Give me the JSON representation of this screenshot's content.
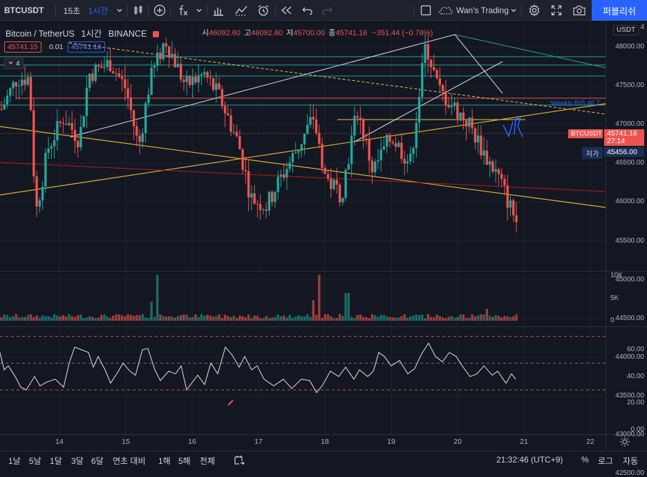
{
  "toolbar": {
    "symbol": "BTCUSDT",
    "compare_label": "15초",
    "interval": "1시간",
    "layout_name": "Wan's Trading",
    "publish_label": "퍼블리쉬"
  },
  "legend": {
    "title": "Bitcoin / TetherUS",
    "interval": "1시간",
    "exchange": "BINANCE",
    "open_label": "시",
    "open": "46092.60",
    "high_label": "고",
    "high": "46092.60",
    "low_label": "저",
    "low": "45700.00",
    "close_label": "종",
    "close": "45741.16",
    "change": "−351.44 (−0.76%)",
    "bid": "45741.15",
    "spread": "0.01",
    "ask": "45741.16",
    "indicator_count": "4"
  },
  "price_axis": {
    "currency": "USDT",
    "ticks": [
      "48000.00",
      "47500.00",
      "47000.00",
      "46500.00",
      "46000.00",
      "45500.00",
      "45000.00",
      "44500.00",
      "44000.00",
      "43500.00",
      "43000.00",
      "42500.00"
    ],
    "top_tick_partial": "4",
    "last_label": "BTCUSDT",
    "last_price": "45741.16",
    "countdown": "27:14",
    "low_label": "저가",
    "low_price": "45456.00",
    "weekly_rs_label": "Weekly R/S 46.7"
  },
  "volume_axis": {
    "ticks": [
      "10K",
      "5K",
      "0"
    ]
  },
  "rsi_axis": {
    "ticks": [
      "60.00",
      "40.00",
      "20.00",
      "0.00"
    ]
  },
  "time_axis": {
    "ticks": [
      "14",
      "15",
      "16",
      "17",
      "18",
      "19",
      "20",
      "21",
      "22"
    ]
  },
  "bottom_bar": {
    "ranges": [
      "1날",
      "5날",
      "1달",
      "3달",
      "6달",
      "연초 대비",
      "1해",
      "5해",
      "전체"
    ],
    "clock": "21:32:46 (UTC+9)",
    "percent": "%",
    "log": "로그",
    "auto": "자동"
  },
  "colors": {
    "background": "#131722",
    "up": "#26a69a",
    "down": "#ef5350",
    "accent": "#2962ff"
  },
  "chart_data": {
    "type": "candlestick",
    "title": "Bitcoin / TetherUS · 1시간 · BINANCE",
    "x_ticks": [
      "14",
      "15",
      "16",
      "17",
      "18",
      "19",
      "20",
      "21",
      "22"
    ],
    "price_range": [
      42200,
      48500
    ],
    "volume_range": [
      0,
      11000
    ],
    "rsi_range": [
      0,
      75
    ],
    "last_price": 45741.16,
    "session_low": 45456.0,
    "rsi_levels": [
      70,
      50,
      30
    ],
    "trendlines": [
      {
        "name": "Weekly R/S 46.7",
        "color": "#26a69a",
        "y": 46700
      }
    ]
  }
}
